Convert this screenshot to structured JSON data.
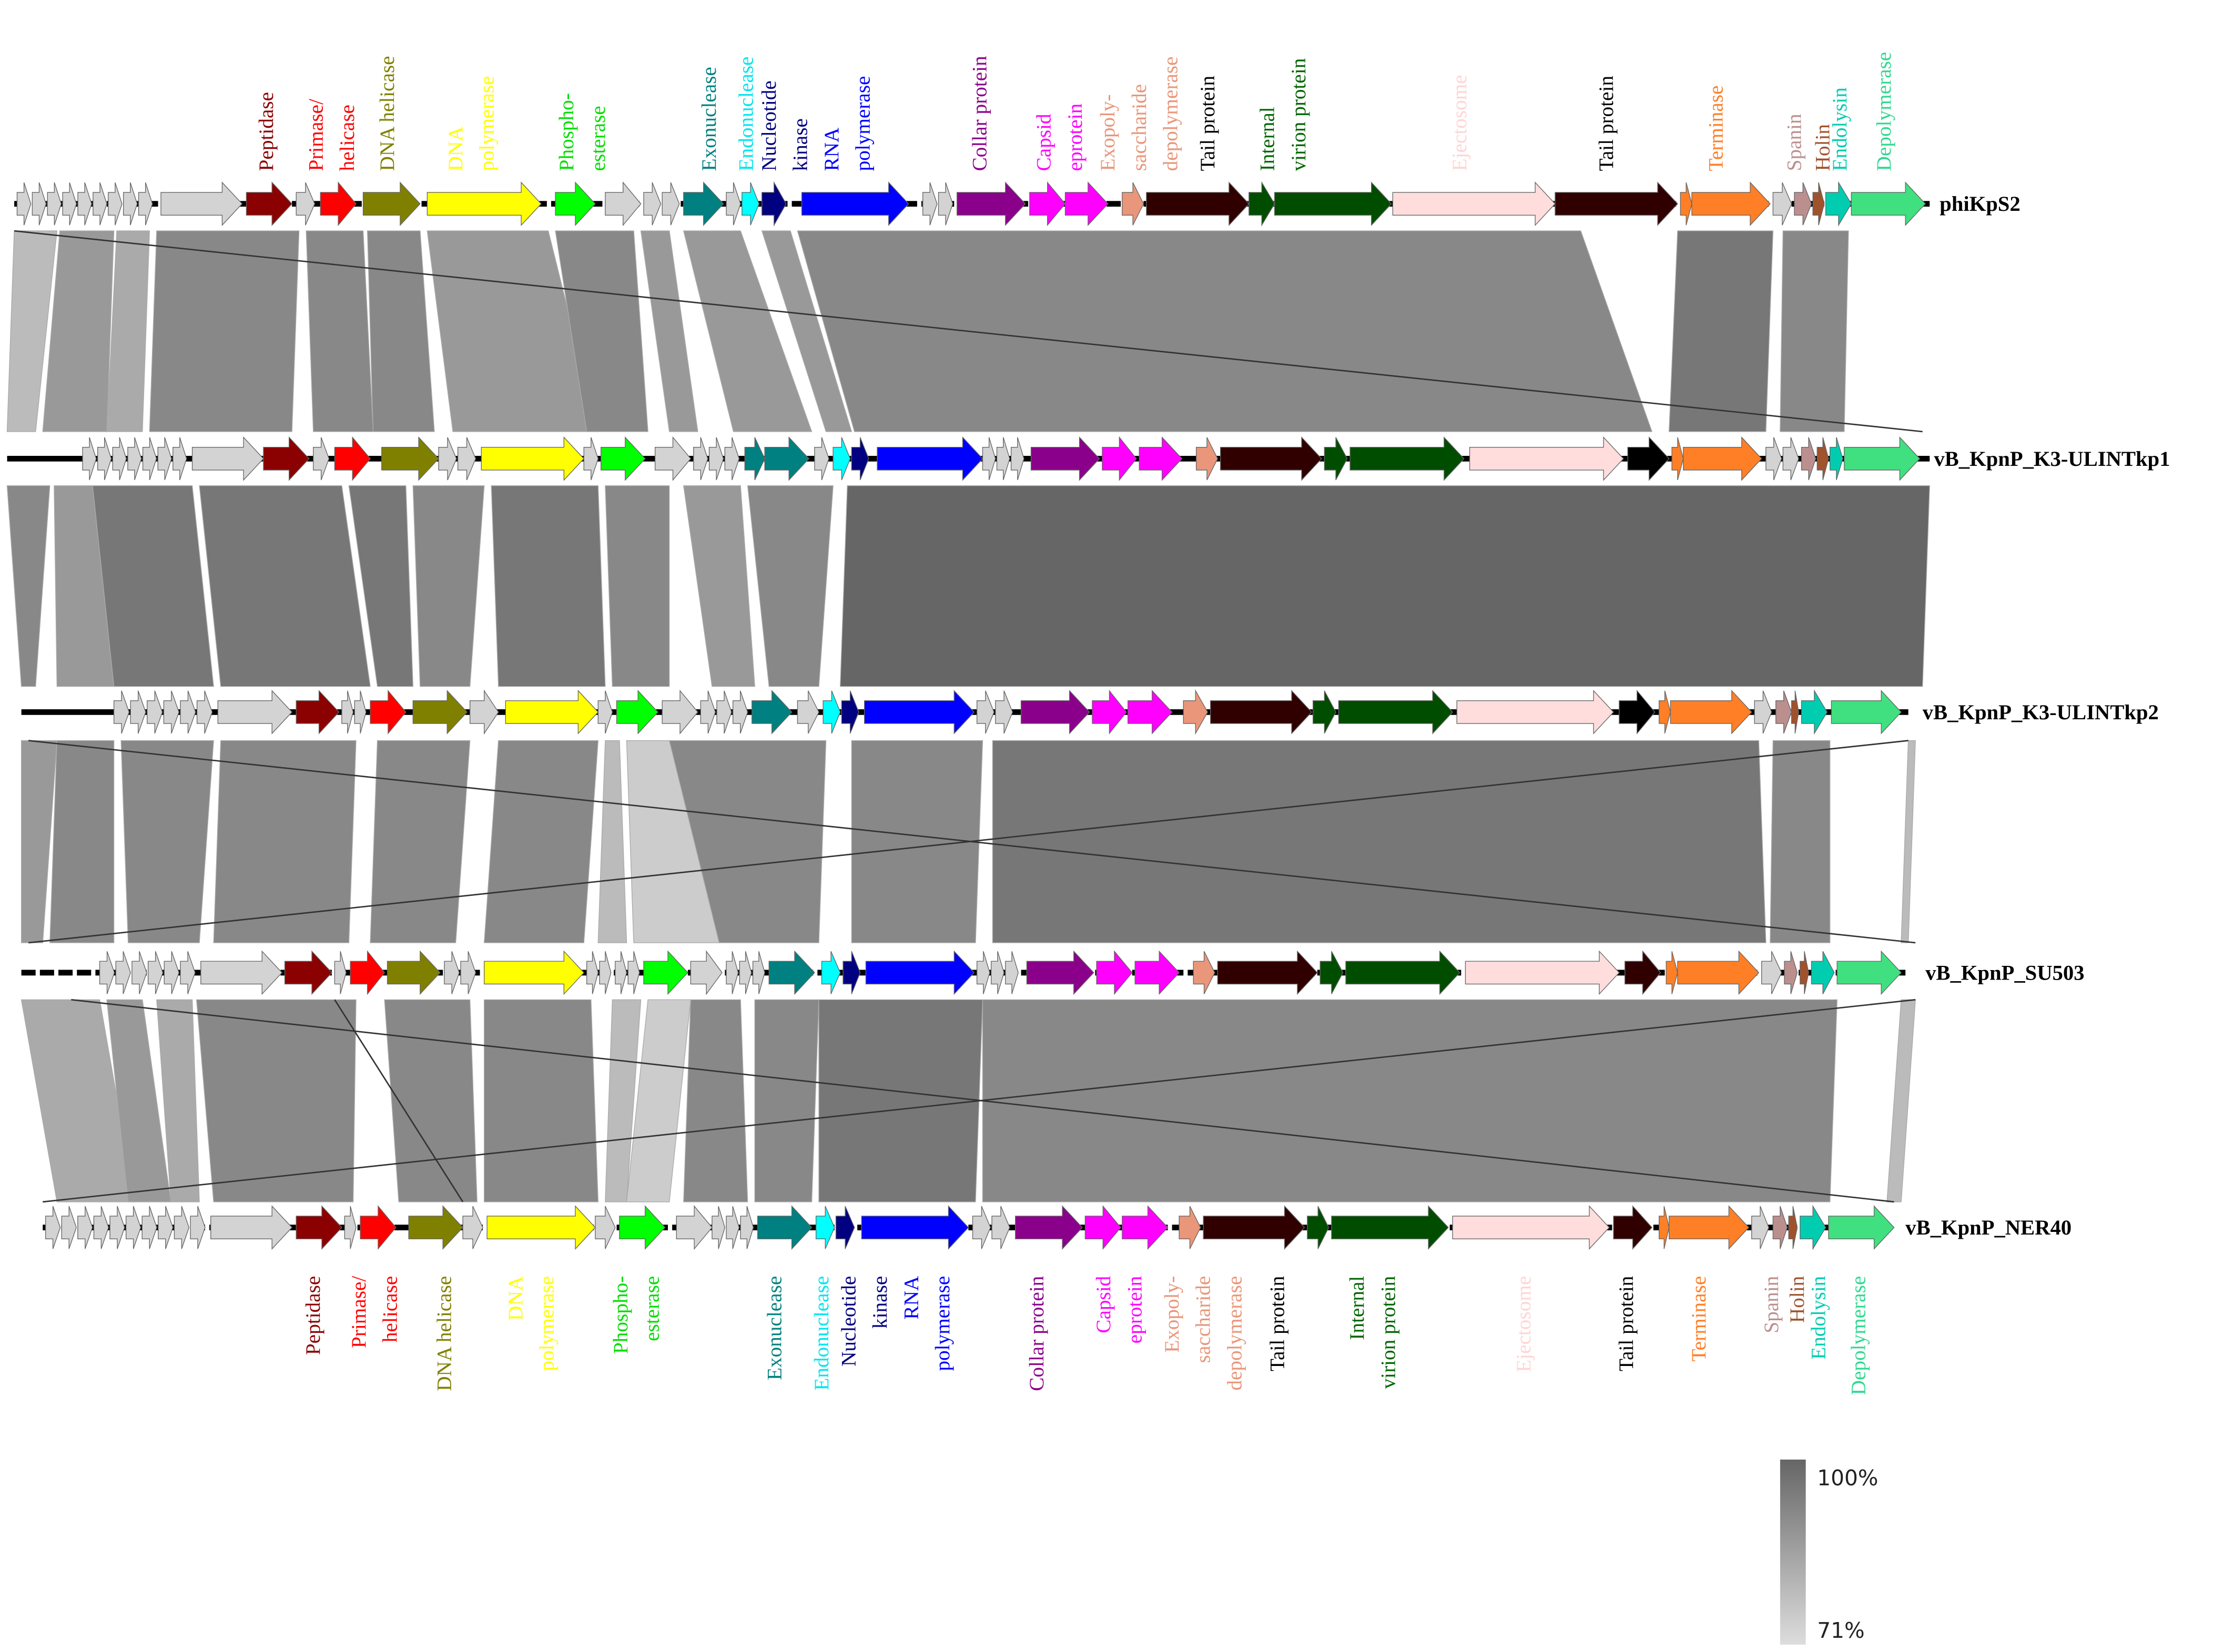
{
  "genomes": [
    "phiKpS2",
    "vB_KpnP_K3-ULINTkp1",
    "vB_KpnP_K3-ULINTkp2",
    "vB_KpnP_SU503",
    "vB_KpnP_NER40"
  ],
  "top_labels": [
    {
      "lines": [
        "Peptidase"
      ],
      "color": "#8B0000"
    },
    {
      "lines": [
        "Primase/",
        "helicase"
      ],
      "color": "#FF0000"
    },
    {
      "lines": [
        "DNA helicase"
      ],
      "color": "#808000"
    },
    {
      "lines": [
        "DNA",
        "polymerase"
      ],
      "color": "#FFFF00"
    },
    {
      "lines": [
        "Phospho-",
        "esterase"
      ],
      "color": "#00DD00"
    },
    {
      "lines": [
        "Exonuclease"
      ],
      "color": "#008080"
    },
    {
      "lines": [
        "Endonuclease"
      ],
      "color": "#00E5EE"
    },
    {
      "lines": [
        "Nucleotide",
        "kinase"
      ],
      "color": "#000080"
    },
    {
      "lines": [
        "RNA",
        "polymerase"
      ],
      "color": "#0000FF"
    },
    {
      "lines": [
        "Collar protein"
      ],
      "color": "#8B008B"
    },
    {
      "lines": [
        "Capsid",
        "eprotein"
      ],
      "color": "#FF00FF"
    },
    {
      "lines": [
        "Exopoly-",
        "saccharide",
        "depolymerase"
      ],
      "color": "#E9967A"
    },
    {
      "lines": [
        "Tail protein"
      ],
      "color": "#000000"
    },
    {
      "lines": [
        "Internal",
        "virion protein"
      ],
      "color": "#006400"
    },
    {
      "lines": [
        "Ejectosome"
      ],
      "color": "#FFD5D5"
    },
    {
      "lines": [
        "Tail protein"
      ],
      "color": "#000000"
    },
    {
      "lines": [
        "Terminase"
      ],
      "color": "#FF7F27"
    },
    {
      "lines": [
        "Spanin"
      ],
      "color": "#BC8F8F"
    },
    {
      "lines": [
        "Holin"
      ],
      "color": "#A0522D"
    },
    {
      "lines": [
        "Endolysin"
      ],
      "color": "#00CDB0"
    },
    {
      "lines": [
        "Depolymerase"
      ],
      "color": "#30D890"
    }
  ],
  "bottom_labels": [
    {
      "lines": [
        "Peptidase"
      ],
      "color": "#8B0000"
    },
    {
      "lines": [
        "Primase/",
        "helicase"
      ],
      "color": "#FF0000"
    },
    {
      "lines": [
        "DNA helicase"
      ],
      "color": "#808000"
    },
    {
      "lines": [
        "DNA",
        "polymerase"
      ],
      "color": "#FFFF00"
    },
    {
      "lines": [
        "Phospho-",
        "esterase"
      ],
      "color": "#00DD00"
    },
    {
      "lines": [
        "Exonuclease"
      ],
      "color": "#008080"
    },
    {
      "lines": [
        "Endonuclease"
      ],
      "color": "#00E5EE"
    },
    {
      "lines": [
        "Nucleotide",
        "kinase"
      ],
      "color": "#000080"
    },
    {
      "lines": [
        "RNA",
        "polymerase"
      ],
      "color": "#0000FF"
    },
    {
      "lines": [
        "Collar protein"
      ],
      "color": "#8B008B"
    },
    {
      "lines": [
        "Capsid",
        "eprotein"
      ],
      "color": "#FF00FF"
    },
    {
      "lines": [
        "Exopoly-",
        "saccharide",
        "depolymerase"
      ],
      "color": "#E9967A"
    },
    {
      "lines": [
        "Tail protein"
      ],
      "color": "#000000"
    },
    {
      "lines": [
        "Internal",
        "virion protein"
      ],
      "color": "#006400"
    },
    {
      "lines": [
        "Ejectosome"
      ],
      "color": "#FFD5D5"
    },
    {
      "lines": [
        "Tail protein"
      ],
      "color": "#000000"
    },
    {
      "lines": [
        "Terminase"
      ],
      "color": "#FF7F27"
    },
    {
      "lines": [
        "Spanin"
      ],
      "color": "#BC8F8F"
    },
    {
      "lines": [
        "Holin"
      ],
      "color": "#A0522D"
    },
    {
      "lines": [
        "Endolysin"
      ],
      "color": "#00CDB0"
    },
    {
      "lines": [
        "Depolymerase"
      ],
      "color": "#30D890"
    }
  ],
  "legend": {
    "max": "100%",
    "min": "71%"
  }
}
